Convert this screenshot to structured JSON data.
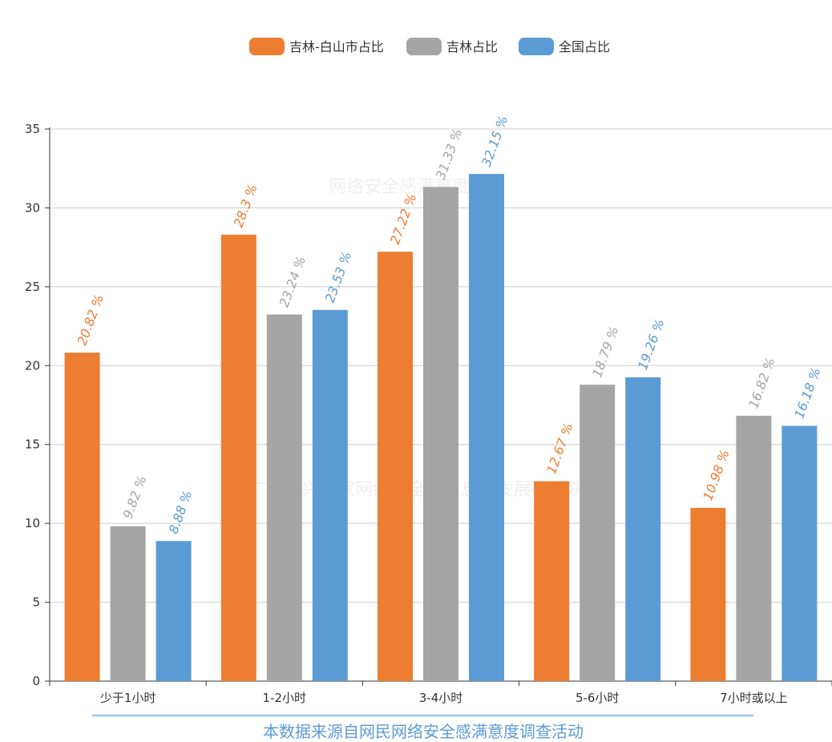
{
  "chart_data": {
    "type": "bar",
    "categories": [
      "少于1小时",
      "1-2小时",
      "3-4小时",
      "5-6小时",
      "7小时或以上"
    ],
    "series": [
      {
        "name": "吉林-白山市占比",
        "color": "#ed7d31",
        "values": [
          20.82,
          28.3,
          27.22,
          12.67,
          10.98
        ]
      },
      {
        "name": "吉林占比",
        "color": "#a5a5a5",
        "values": [
          9.82,
          23.24,
          31.33,
          18.79,
          16.82
        ]
      },
      {
        "name": "全国占比",
        "color": "#5b9bd5",
        "values": [
          8.88,
          23.53,
          32.15,
          19.26,
          16.18
        ]
      }
    ],
    "label_suffix": " %",
    "ylim": [
      0,
      35
    ],
    "yticks": [
      0,
      5,
      10,
      15,
      20,
      25,
      30,
      35
    ],
    "grid": true,
    "legend_position": "top-center"
  },
  "footer": {
    "text": "本数据来源自网民网络安全感满意度调查活动",
    "color": "#5b9bd5"
  },
  "watermarks": [
    "网络安全感满意度调查",
    "广东新兴国家网络安全和信息化发展研究院"
  ]
}
